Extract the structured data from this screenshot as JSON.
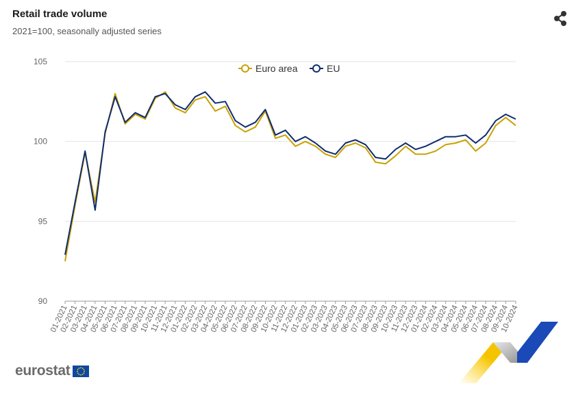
{
  "header": {
    "title": "Retail trade volume",
    "subtitle": "2021=100, seasonally adjusted series"
  },
  "branding": {
    "logo_text": "eurostat",
    "share_icon": "share-icon"
  },
  "colors": {
    "euro_area": "#c9a100",
    "eu": "#0e2c6e",
    "grid": "#e3e3e3",
    "axis_text": "#666666"
  },
  "chart_data": {
    "type": "line",
    "title": "Retail trade volume",
    "subtitle": "2021=100, seasonally adjusted series",
    "ylim": [
      90,
      105
    ],
    "yticks": [
      90,
      95,
      100,
      105
    ],
    "grid": true,
    "legend_position": "top-center",
    "x": [
      "01-2021",
      "02-2021",
      "03-2021",
      "04-2021",
      "05-2021",
      "06-2021",
      "07-2021",
      "08-2021",
      "09-2021",
      "10-2021",
      "11-2021",
      "12-2021",
      "01-2022",
      "02-2022",
      "03-2022",
      "04-2022",
      "05-2022",
      "06-2022",
      "07-2022",
      "08-2022",
      "09-2022",
      "10-2022",
      "11-2022",
      "12-2022",
      "01-2023",
      "02-2023",
      "03-2023",
      "04-2023",
      "05-2023",
      "06-2023",
      "07-2023",
      "08-2023",
      "09-2023",
      "10-2023",
      "11-2023",
      "12-2023",
      "01-2024",
      "02-2024",
      "03-2024",
      "04-2024",
      "05-2024",
      "06-2024",
      "07-2024",
      "08-2024",
      "09-2024",
      "10-2024"
    ],
    "series": [
      {
        "name": "Euro area",
        "values": [
          92.5,
          96.0,
          99.3,
          96.2,
          100.5,
          103.0,
          101.1,
          101.7,
          101.4,
          102.7,
          103.1,
          102.1,
          101.8,
          102.6,
          102.8,
          101.9,
          102.2,
          101.0,
          100.6,
          100.9,
          101.9,
          100.2,
          100.4,
          99.7,
          100.0,
          99.7,
          99.2,
          99.0,
          99.7,
          99.9,
          99.6,
          98.7,
          98.6,
          99.1,
          99.7,
          99.2,
          99.2,
          99.4,
          99.8,
          99.9,
          100.1,
          99.4,
          99.9,
          101.0,
          101.5,
          101.0
        ]
      },
      {
        "name": "EU",
        "values": [
          92.9,
          96.2,
          99.4,
          95.7,
          100.6,
          102.8,
          101.2,
          101.8,
          101.5,
          102.8,
          103.0,
          102.3,
          102.0,
          102.8,
          103.1,
          102.4,
          102.5,
          101.3,
          100.9,
          101.2,
          102.0,
          100.4,
          100.7,
          100.0,
          100.3,
          99.9,
          99.4,
          99.2,
          99.9,
          100.1,
          99.8,
          99.0,
          98.9,
          99.5,
          99.9,
          99.5,
          99.7,
          100.0,
          100.3,
          100.3,
          100.4,
          99.9,
          100.4,
          101.3,
          101.7,
          101.4
        ]
      }
    ]
  }
}
